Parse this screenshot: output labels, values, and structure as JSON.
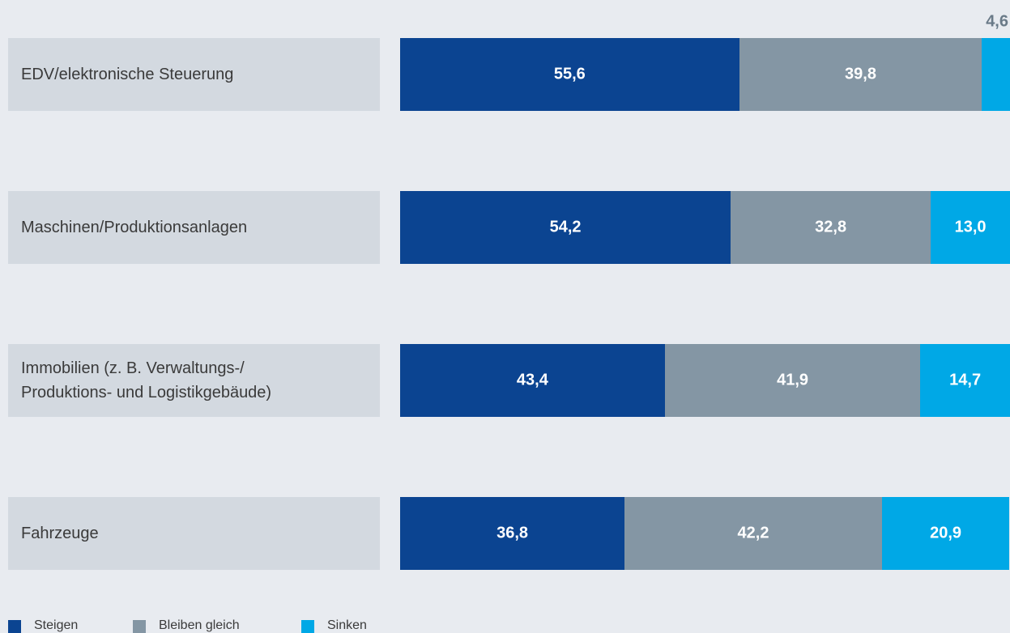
{
  "chart_data": {
    "type": "bar",
    "orientation": "horizontal",
    "stacked": true,
    "categories": [
      "EDV/elektronische Steuerung",
      "Maschinen/Produktionsanlagen",
      "Immobilien (z. B. Verwaltungs-/\nProduktions- und Logistikgebäude)",
      "Fahrzeuge"
    ],
    "xlim": [
      0,
      100
    ],
    "series": [
      {
        "name": "Steigen",
        "color": "#0b4491",
        "values": [
          55.6,
          54.2,
          43.4,
          36.8
        ],
        "value_labels": [
          "55,6",
          "54,2",
          "43,4",
          "36,8"
        ]
      },
      {
        "name": "Bleiben gleich",
        "color": "#8496a4",
        "values": [
          39.8,
          32.8,
          41.9,
          42.2
        ],
        "value_labels": [
          "39,8",
          "32,8",
          "41,9",
          "42,2"
        ]
      },
      {
        "name": "Sinken",
        "color": "#00a8e6",
        "values": [
          4.6,
          13.0,
          14.7,
          20.9
        ],
        "value_labels": [
          "4,6",
          "13,0",
          "14,7",
          "20,9"
        ]
      }
    ]
  }
}
